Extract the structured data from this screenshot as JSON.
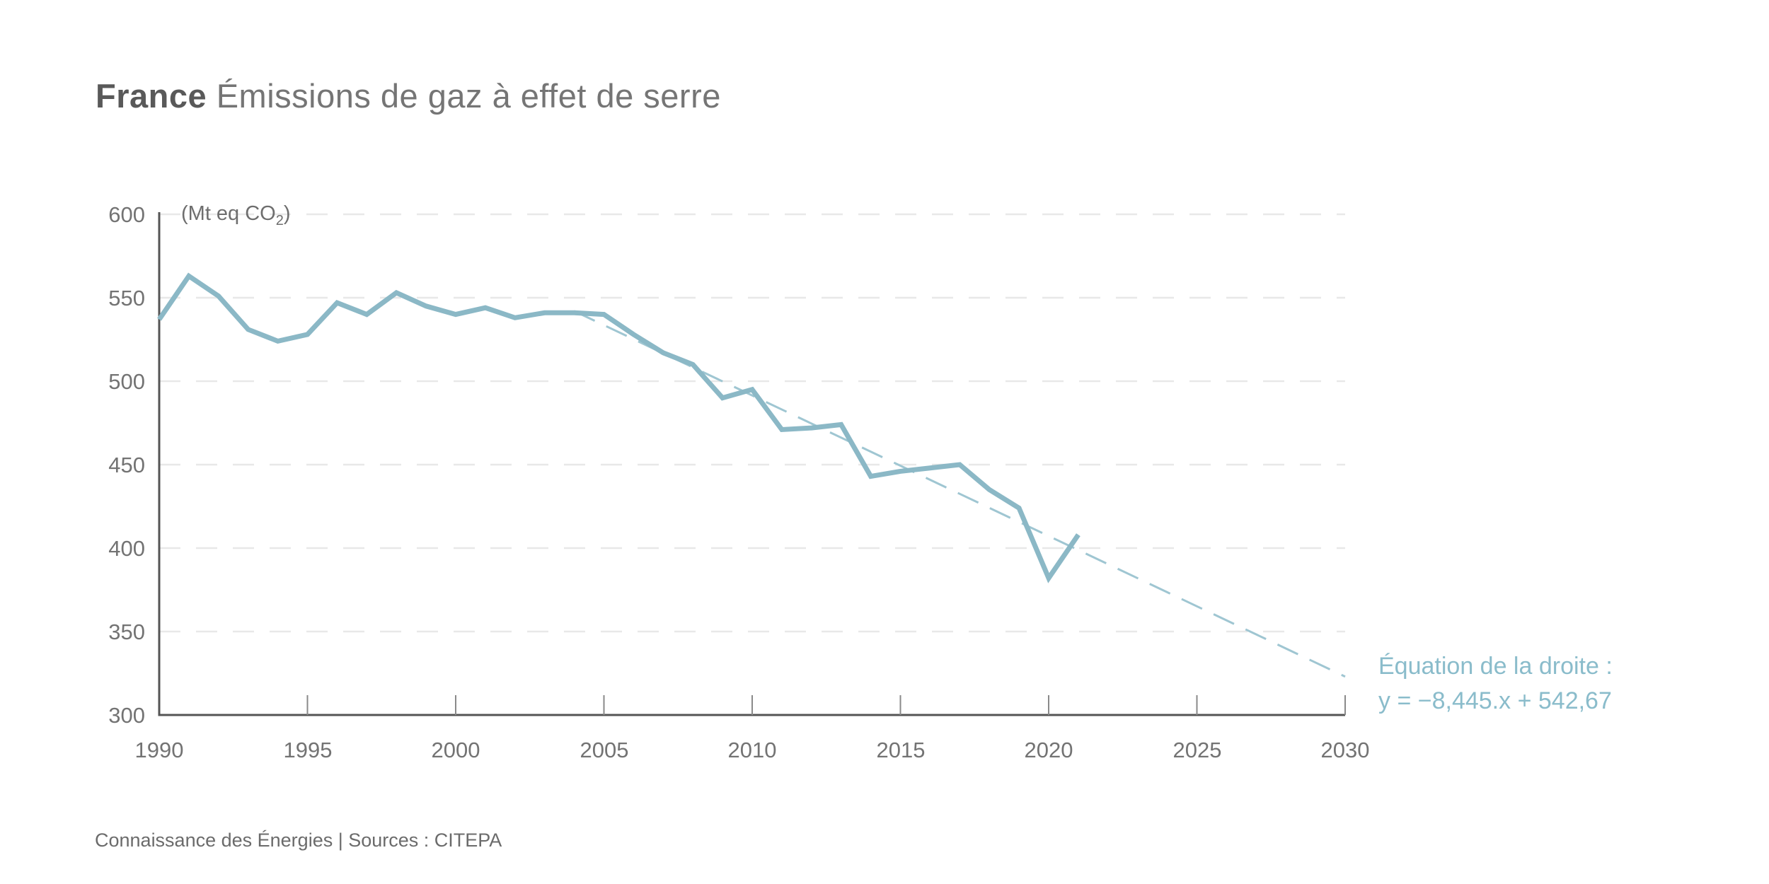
{
  "title": {
    "bold": "France",
    "rest": " Émissions de gaz à effet de serre"
  },
  "unit_label": {
    "prefix": "(Mt eq CO",
    "subscript": "2",
    "suffix": ")"
  },
  "annotation": {
    "line1": "Équation de la droite :",
    "line2": "y = −8,445.x + 542,67"
  },
  "source": "Connaissance des Énergies | Sources : CITEPA",
  "colors": {
    "line": "#8bb8c6",
    "trend": "#9fc6d2",
    "annotation_text": "#8abccb",
    "grid": "#e8e8e8",
    "axis": "#545454",
    "tick": "#8a8a8a",
    "tick_text": "#737373",
    "title_bold": "#595959",
    "title_rest": "#757575",
    "source_text": "#6b6b6b"
  },
  "chart_data": {
    "type": "line",
    "title": "France — Émissions de gaz à effet de serre",
    "ylabel": "(Mt eq CO2)",
    "xlabel": "",
    "xlim": [
      1990,
      2030
    ],
    "ylim": [
      300,
      600
    ],
    "grid": "horizontal-dashed",
    "legend_position": "none",
    "xticks": [
      1990,
      1995,
      2000,
      2005,
      2010,
      2015,
      2020,
      2025,
      2030
    ],
    "yticks": [
      600,
      550,
      500,
      450,
      400,
      350,
      300
    ],
    "x": [
      1990,
      1991,
      1992,
      1993,
      1994,
      1995,
      1996,
      1997,
      1998,
      1999,
      2000,
      2001,
      2002,
      2003,
      2004,
      2005,
      2006,
      2007,
      2008,
      2009,
      2010,
      2011,
      2012,
      2013,
      2014,
      2015,
      2016,
      2017,
      2018,
      2019,
      2020,
      2021
    ],
    "series": [
      {
        "name": "Émissions de gaz à effet de serre (Mt eq CO2)",
        "values": [
          537,
          563,
          551,
          531,
          524,
          528,
          547,
          540,
          553,
          545,
          540,
          544,
          538,
          541,
          541,
          540,
          528,
          517,
          510,
          490,
          495,
          471,
          472,
          474,
          443,
          446,
          448,
          450,
          435,
          424,
          382,
          408
        ]
      }
    ],
    "trend": {
      "style": "dashed",
      "equation": "y = −8,445.x + 542,67",
      "x": [
        2004,
        2030
      ],
      "y": [
        542,
        323
      ]
    }
  }
}
